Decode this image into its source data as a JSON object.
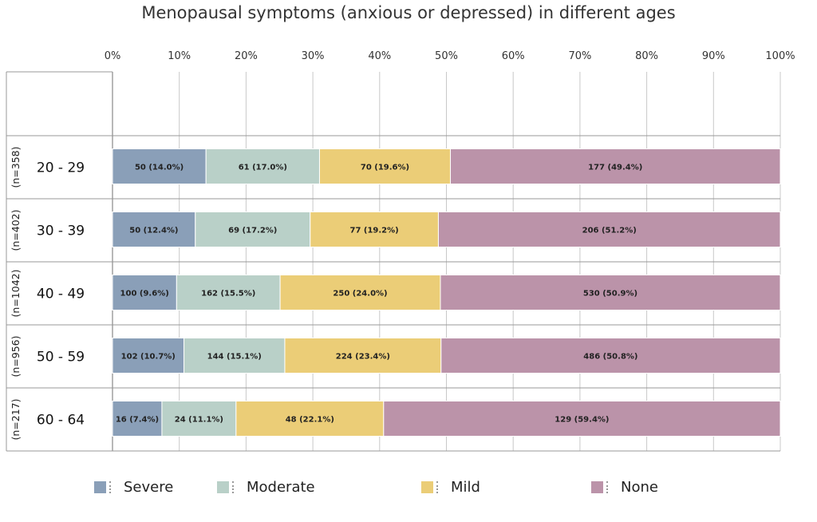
{
  "chart_data": {
    "type": "bar",
    "orientation": "horizontal",
    "stacked": true,
    "title": "Menopausal symptoms (anxious or depressed) in different ages",
    "categories": [
      "20 - 29",
      "30 - 39",
      "40 - 49",
      "50 - 59",
      "60 - 64"
    ],
    "group_sizes": [
      "(n=358)",
      "(n=402)",
      "(n=1042)",
      "(n=956)",
      "(n=217)"
    ],
    "xticks": [
      "0%",
      "10%",
      "20%",
      "30%",
      "40%",
      "50%",
      "60%",
      "70%",
      "80%",
      "90%",
      "100%"
    ],
    "xlim": [
      0,
      100
    ],
    "grid": true,
    "legend_position": "bottom",
    "series": [
      {
        "name": "Severe",
        "color": "#8a9fb8",
        "values": [
          14.0,
          12.4,
          9.6,
          10.7,
          7.4
        ],
        "labels": [
          "50 (14.0%)",
          "50 (12.4%)",
          "100 (9.6%)",
          "102 (10.7%)",
          "16 (7.4%)"
        ]
      },
      {
        "name": "Moderate",
        "color": "#b9d0c8",
        "values": [
          17.0,
          17.2,
          15.5,
          15.1,
          11.1
        ],
        "labels": [
          "61 (17.0%)",
          "69 (17.2%)",
          "162 (15.5%)",
          "144 (15.1%)",
          "24 (11.1%)"
        ]
      },
      {
        "name": "Mild",
        "color": "#ebcd77",
        "values": [
          19.6,
          19.2,
          24.0,
          23.4,
          22.1
        ],
        "labels": [
          "70 (19.6%)",
          "77 (19.2%)",
          "250 (24.0%)",
          "224 (23.4%)",
          "48 (22.1%)"
        ]
      },
      {
        "name": "None",
        "color": "#bb93a9",
        "values": [
          49.4,
          51.2,
          50.9,
          50.8,
          59.4
        ],
        "labels": [
          "177 (49.4%)",
          "206 (51.2%)",
          "530 (50.9%)",
          "486 (50.8%)",
          "129 (59.4%)"
        ]
      }
    ]
  }
}
